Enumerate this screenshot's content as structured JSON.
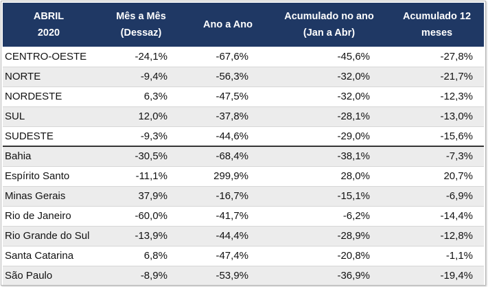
{
  "header": {
    "col0": [
      "ABRIL",
      "2020"
    ],
    "col1": [
      "Mês a Mês",
      "(Dessaz)"
    ],
    "col2": [
      "Ano a Ano"
    ],
    "col3": [
      "Acumulado no ano",
      "(Jan a Abr)"
    ],
    "col4": [
      "Acumulado 12",
      "meses"
    ]
  },
  "rows": [
    {
      "name": "CENTRO-OESTE",
      "mm": "-24,1%",
      "aa": "-67,6%",
      "acum": "-45,6%",
      "a12": "-27,8%"
    },
    {
      "name": "NORTE",
      "mm": "-9,4%",
      "aa": "-56,3%",
      "acum": "-32,0%",
      "a12": "-21,7%"
    },
    {
      "name": "NORDESTE",
      "mm": "6,3%",
      "aa": "-47,5%",
      "acum": "-32,0%",
      "a12": "-12,3%"
    },
    {
      "name": "SUL",
      "mm": "12,0%",
      "aa": "-37,8%",
      "acum": "-28,1%",
      "a12": "-13,0%"
    },
    {
      "name": "SUDESTE",
      "mm": "-9,3%",
      "aa": "-44,6%",
      "acum": "-29,0%",
      "a12": "-15,6%"
    },
    {
      "name": "Bahia",
      "mm": "-30,5%",
      "aa": "-68,4%",
      "acum": "-38,1%",
      "a12": "-7,3%"
    },
    {
      "name": "Espírito Santo",
      "mm": "-11,1%",
      "aa": "299,9%",
      "acum": "28,0%",
      "a12": "20,7%"
    },
    {
      "name": "Minas Gerais",
      "mm": "37,9%",
      "aa": "-16,7%",
      "acum": "-15,1%",
      "a12": "-6,9%"
    },
    {
      "name": "Rio de Janeiro",
      "mm": "-60,0%",
      "aa": "-41,7%",
      "acum": "-6,2%",
      "a12": "-14,4%"
    },
    {
      "name": "Rio Grande do Sul",
      "mm": "-13,9%",
      "aa": "-44,4%",
      "acum": "-28,9%",
      "a12": "-12,8%"
    },
    {
      "name": "Santa Catarina",
      "mm": "6,8%",
      "aa": "-47,4%",
      "acum": "-20,8%",
      "a12": "-1,1%"
    },
    {
      "name": "São Paulo",
      "mm": "-8,9%",
      "aa": "-53,9%",
      "acum": "-36,9%",
      "a12": "-19,4%"
    }
  ],
  "colors": {
    "header_bg": "#1f3864",
    "header_text": "#ffffff",
    "stripe": "#ececec"
  }
}
